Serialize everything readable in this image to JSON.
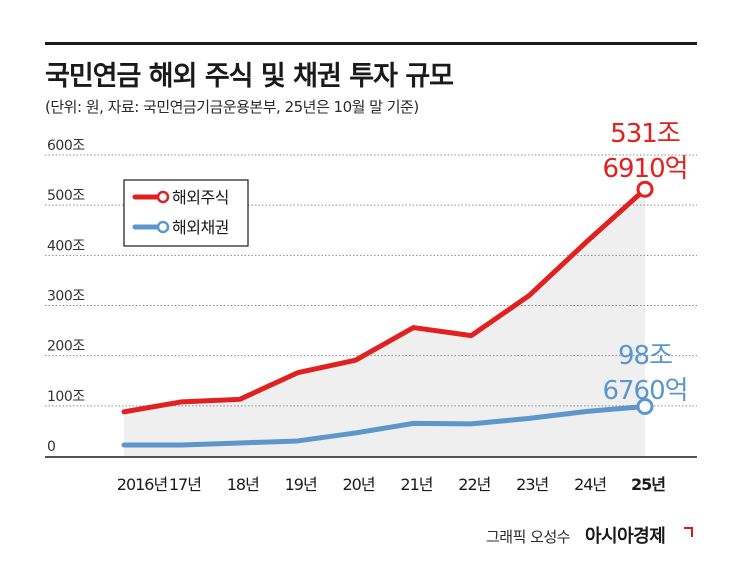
{
  "title": "국민연금 해외 주식 및 채권 투자 규모",
  "subtitle": "(단위: 원, 자료: 국민연금기금운용본부, 25년은 10월 말 기준)",
  "credit": "그래픽 오성수",
  "brand": "아시아경제",
  "colors": {
    "stocks": "#e1201f",
    "bonds": "#5c97cc",
    "area": "#efefef"
  },
  "chart_data": {
    "type": "line",
    "categories": [
      "2016년",
      "17년",
      "18년",
      "19년",
      "20년",
      "21년",
      "22년",
      "23년",
      "24년",
      "25년"
    ],
    "series": [
      {
        "name": "해외주식",
        "values": [
          88,
          108,
          113,
          166,
          191,
          256,
          240,
          320,
          428,
          531.7
        ]
      },
      {
        "name": "해외채권",
        "values": [
          22,
          22,
          26,
          30,
          46,
          65,
          64,
          75,
          89,
          98.7
        ]
      }
    ],
    "yticks": [
      {
        "value": 0,
        "label": "0"
      },
      {
        "value": 100,
        "label": "100조"
      },
      {
        "value": 200,
        "label": "200조"
      },
      {
        "value": 300,
        "label": "300조"
      },
      {
        "value": 400,
        "label": "400조"
      },
      {
        "value": 500,
        "label": "500조"
      },
      {
        "value": 600,
        "label": "600조"
      }
    ],
    "ylim": [
      0,
      600
    ],
    "annotations": {
      "stocks_end": [
        "531조",
        "6910억"
      ],
      "bonds_end": [
        "98조",
        "6760억"
      ]
    },
    "legend_placement": "top-left",
    "grid": true
  }
}
